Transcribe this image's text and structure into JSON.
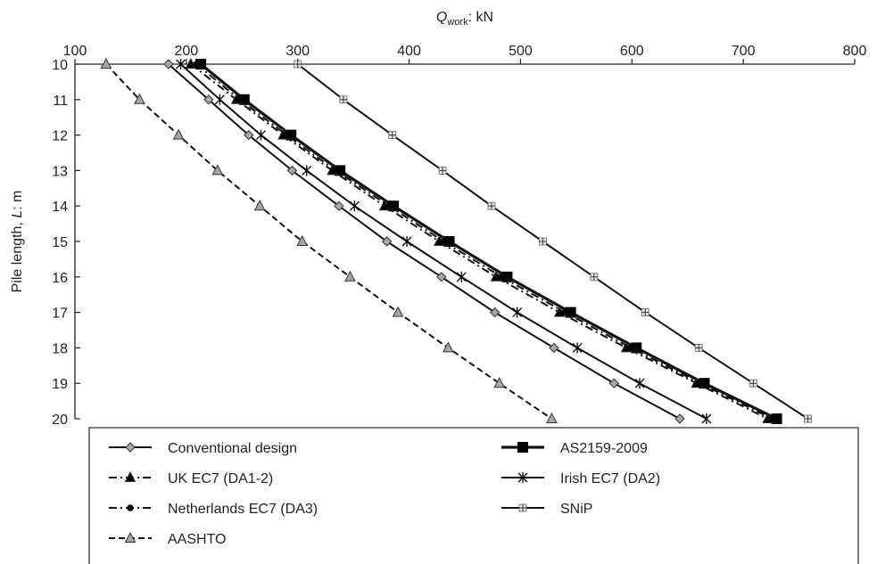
{
  "chart_data": {
    "type": "line",
    "xlabel": {
      "main": "Q",
      "sub": "work",
      "rest": ": kN"
    },
    "ylabel": {
      "prefix": "Pile length, ",
      "italic": "L",
      "suffix": ": m"
    },
    "x_axis_position": "top",
    "xlim": [
      100,
      800
    ],
    "ylim": [
      10,
      20
    ],
    "y_inverted": true,
    "x_ticks": [
      100,
      200,
      300,
      400,
      500,
      600,
      700,
      800
    ],
    "y_ticks": [
      10,
      11,
      12,
      13,
      14,
      15,
      16,
      17,
      18,
      19,
      20
    ],
    "grid": false,
    "legend_position": "bottom",
    "y": [
      10,
      11,
      12,
      13,
      14,
      15,
      16,
      17,
      18,
      19,
      20
    ],
    "series": [
      {
        "name": "Conventional design",
        "marker": "diamond",
        "dash": "solid",
        "width": 2,
        "marker_color": "#a6a6a6",
        "x": [
          184,
          220,
          256,
          295,
          337,
          380,
          429,
          477,
          530,
          584,
          643
        ]
      },
      {
        "name": "AS2159-2009",
        "marker": "square",
        "dash": "solid",
        "width": 3.2,
        "marker_color": "#000000",
        "x": [
          213,
          252,
          294,
          338,
          386,
          436,
          488,
          545,
          604,
          665,
          730
        ]
      },
      {
        "name": "UK EC7 (DA1-2)",
        "marker": "triangle",
        "dash": "dashdot",
        "width": 2,
        "marker_color": "#000000",
        "x": [
          204,
          245,
          287,
          331,
          378,
          427,
          478,
          535,
          595,
          658,
          722
        ]
      },
      {
        "name": "Irish EC7 (DA2)",
        "marker": "star",
        "dash": "solid",
        "width": 2,
        "marker_color": "#000000",
        "x": [
          195,
          230,
          267,
          308,
          351,
          398,
          447,
          497,
          551,
          607,
          667
        ]
      },
      {
        "name": "Netherlands EC7 (DA3)",
        "marker": "circle",
        "dash": "dashdot",
        "width": 2,
        "marker_color": "#000000",
        "x": [
          209,
          248,
          290,
          334,
          382,
          431,
          483,
          540,
          599,
          661,
          726
        ]
      },
      {
        "name": "SNiP",
        "marker": "plus",
        "dash": "solid",
        "width": 2,
        "marker_color": "#a6a6a6",
        "x": [
          300,
          341,
          385,
          430,
          474,
          520,
          566,
          612,
          660,
          709,
          758
        ]
      },
      {
        "name": "AASHTO",
        "marker": "triangle",
        "dash": "dashed",
        "width": 2,
        "marker_color": "#a6a6a6",
        "x": [
          128,
          158,
          193,
          228,
          266,
          304,
          347,
          390,
          435,
          481,
          528
        ]
      }
    ],
    "legend": [
      {
        "series": 0,
        "col": 0,
        "row": 0
      },
      {
        "series": 1,
        "col": 1,
        "row": 0
      },
      {
        "series": 2,
        "col": 0,
        "row": 1
      },
      {
        "series": 3,
        "col": 1,
        "row": 1
      },
      {
        "series": 4,
        "col": 0,
        "row": 2
      },
      {
        "series": 5,
        "col": 1,
        "row": 2
      },
      {
        "series": 6,
        "col": 0,
        "row": 3
      }
    ]
  }
}
